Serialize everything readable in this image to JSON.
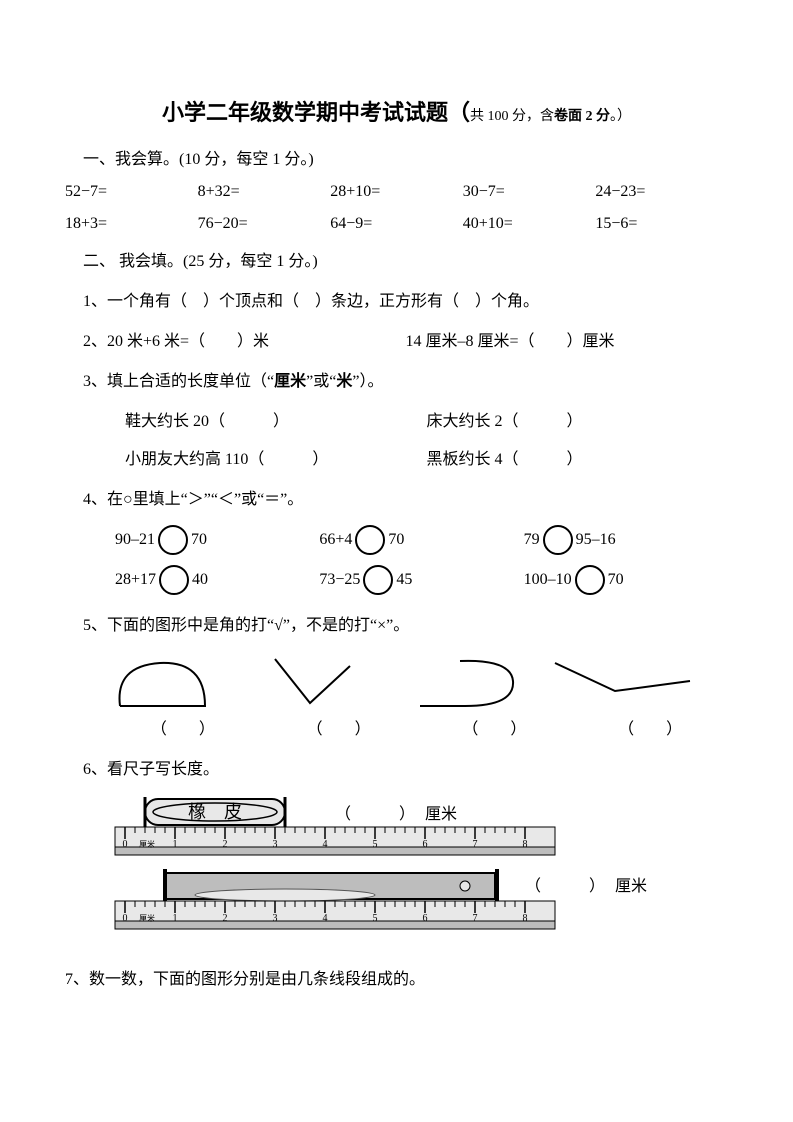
{
  "title": {
    "main": "小学二年级数学期中考试试题（",
    "sub_prefix": "共 100 分，含",
    "sub_bold": "卷面 2 分",
    "sub_suffix": "。）"
  },
  "section1": {
    "head": "一、我会算。(10 分，每空 1 分。)",
    "rows": [
      [
        "52−7=",
        "8+32=",
        "28+10=",
        "30−7=",
        "24−23="
      ],
      [
        "18+3=",
        "76−20=",
        "64−9=",
        "40+10=",
        "15−6="
      ]
    ]
  },
  "section2": {
    "head": "二、 我会填。(25 分，每空 1 分。)",
    "q1": "1、一个角有（　）个顶点和（　）条边，正方形有（　）个角。",
    "q2_a": "2、20 米+6 米=（　　）米",
    "q2_b": "14 厘米–8 厘米=（　　）厘米",
    "q3_head": "3、填上合适的长度单位（“厘米”或“米”）。",
    "q3_rows": [
      {
        "a": "鞋大约长 20（　　　）",
        "b": "床大约长 2（　　　）"
      },
      {
        "a": "小朋友大约高 110（　　　）",
        "b": "黑板约长 4（　　　）"
      }
    ],
    "q4_head": "4、在○里填上“＞”“＜”或“＝”。",
    "q4_rows": [
      [
        {
          "l": "90–21",
          "r": "70"
        },
        {
          "l": "66+4",
          "r": "70"
        },
        {
          "l": "79",
          "r": "95–16"
        }
      ],
      [
        {
          "l": "28+17",
          "r": "40"
        },
        {
          "l": "73−25",
          "r": "45"
        },
        {
          "l": "100–10",
          "r": "70"
        }
      ]
    ],
    "q5_head": "5、下面的图形中是角的打“√”，不是的打“×”。",
    "q5_parens": [
      "（　　）",
      "（　　）",
      "（　　）",
      "（　　）"
    ],
    "q6_head": "6、看尺子写长度。",
    "q6_eraser_label": "橡　皮",
    "q6_blank1": "（　　　）",
    "q6_unit1": "厘米",
    "q6_blank2": "（　　　）",
    "q6_unit2": "厘米",
    "ruler_ticks": [
      "0",
      "1",
      "2",
      "3",
      "4",
      "5",
      "6",
      "7",
      "8"
    ],
    "ruler_unit": "厘米",
    "q7": "7、数一数，下面的图形分别是由几条线段组成的。"
  },
  "style": {
    "ruler_bg": "#bdbdbd",
    "ruler_face": "#e8e8e8",
    "ruler_border": "#000000",
    "text_color": "#000000"
  }
}
